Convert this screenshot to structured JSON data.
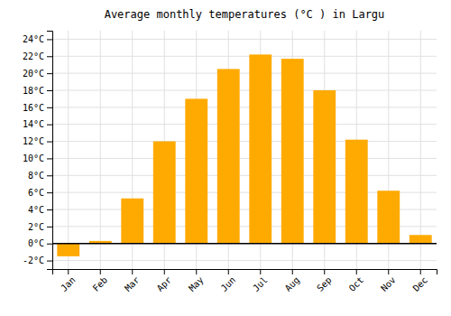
{
  "chart_data": {
    "type": "bar",
    "title": "Average monthly temperatures (°C ) in Largu",
    "categories": [
      "Jan",
      "Feb",
      "Mar",
      "Apr",
      "May",
      "Jun",
      "Jul",
      "Aug",
      "Sep",
      "Oct",
      "Nov",
      "Dec"
    ],
    "values": [
      -1.5,
      0.3,
      5.3,
      12.0,
      17.0,
      20.5,
      22.2,
      21.7,
      18.0,
      12.2,
      6.2,
      1.0
    ],
    "color": "#FFAA00",
    "ylim": [
      -3,
      25
    ],
    "yticks": [
      {
        "value": -2,
        "label": "-2°C"
      },
      {
        "value": 0,
        "label": "0°C"
      },
      {
        "value": 2,
        "label": "2°C"
      },
      {
        "value": 4,
        "label": "4°C"
      },
      {
        "value": 6,
        "label": "6°C"
      },
      {
        "value": 8,
        "label": "8°C"
      },
      {
        "value": 10,
        "label": "10°C"
      },
      {
        "value": 12,
        "label": "12°C"
      },
      {
        "value": 14,
        "label": "14°C"
      },
      {
        "value": 16,
        "label": "16°C"
      },
      {
        "value": 18,
        "label": "18°C"
      },
      {
        "value": 20,
        "label": "20°C"
      },
      {
        "value": 22,
        "label": "22°C"
      },
      {
        "value": 24,
        "label": "24°C"
      }
    ],
    "grid": true
  }
}
